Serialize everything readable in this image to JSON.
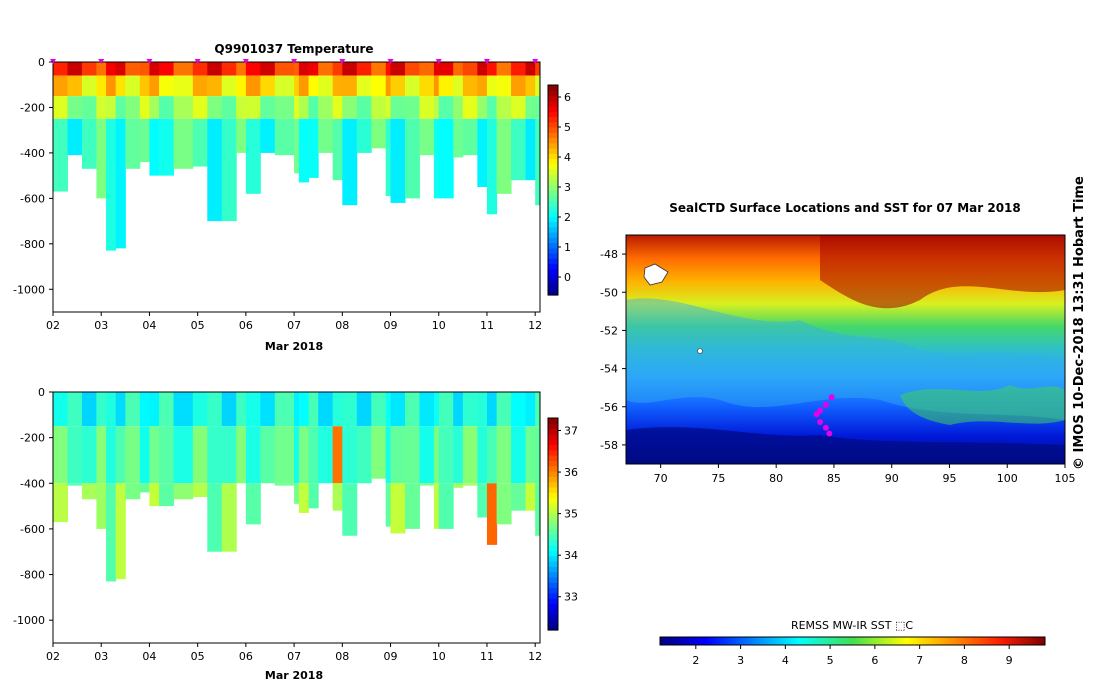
{
  "top_panel": {
    "title": "Q9901037  Temperature",
    "xlabel": "Mar 2018",
    "x_ticks": [
      "02",
      "03",
      "04",
      "05",
      "06",
      "07",
      "08",
      "09",
      "10",
      "11",
      "12"
    ],
    "y_ticks": [
      "0",
      "-200",
      "-400",
      "-600",
      "-800",
      "-1000"
    ],
    "colorbar_ticks": [
      "6",
      "5",
      "4",
      "3",
      "2",
      "1",
      "0"
    ]
  },
  "bottom_panel": {
    "xlabel": "Mar 2018",
    "x_ticks": [
      "02",
      "03",
      "04",
      "05",
      "06",
      "07",
      "08",
      "09",
      "10",
      "11",
      "12"
    ],
    "y_ticks": [
      "0",
      "-200",
      "-400",
      "-600",
      "-800",
      "-1000"
    ],
    "colorbar_ticks": [
      "37",
      "36",
      "35",
      "34",
      "33"
    ]
  },
  "map_panel": {
    "title": "SealCTD Surface Locations and SST for 07 Mar 2018",
    "lat_ticks": [
      "-48",
      "-50",
      "-52",
      "-54",
      "-56",
      "-58"
    ],
    "lon_ticks": [
      "70",
      "75",
      "80",
      "85",
      "90",
      "95",
      "100",
      "105"
    ],
    "colorbar_label": "REMSS MW-IR SST ⬚C",
    "colorbar_ticks": [
      "2",
      "3",
      "4",
      "5",
      "6",
      "7",
      "8",
      "9"
    ],
    "side_text": "© IMOS 10-Dec-2018 13:31 Hobart Time"
  },
  "colors": {
    "jet": [
      "#00007f",
      "#0000ff",
      "#007fff",
      "#00ffff",
      "#7fff7f",
      "#ffff00",
      "#ff7f00",
      "#ff0000",
      "#7f0000"
    ],
    "marker": "#e600e6"
  },
  "chart_data": [
    {
      "type": "heatmap",
      "title": "Q9901037  Temperature",
      "xlabel": "Mar 2018",
      "ylabel": "",
      "xlim": [
        "2018-03-02",
        "2018-03-12"
      ],
      "ylim": [
        -1100,
        0
      ],
      "colorbar_range": [
        -0.6,
        6.4
      ],
      "profile_times_day": [
        2.0,
        2.3,
        2.6,
        2.9,
        3.1,
        3.3,
        3.5,
        3.8,
        4.0,
        4.2,
        4.5,
        4.9,
        5.2,
        5.5,
        5.8,
        6.0,
        6.3,
        6.6,
        7.0,
        7.1,
        7.3,
        7.5,
        7.8,
        8.0,
        8.3,
        8.6,
        8.9,
        9.0,
        9.3,
        9.6,
        9.9,
        10.0,
        10.3,
        10.5,
        10.8,
        11.0,
        11.2,
        11.5,
        11.8,
        12.0
      ],
      "profile_max_depth_m": [
        -570,
        -410,
        -470,
        -600,
        -830,
        -820,
        -470,
        -440,
        -500,
        -500,
        -470,
        -460,
        -700,
        -700,
        -400,
        -580,
        -400,
        -410,
        -490,
        -530,
        -510,
        -400,
        -520,
        -630,
        -400,
        -380,
        -590,
        -620,
        -600,
        -410,
        -600,
        -600,
        -420,
        -410,
        -550,
        -670,
        -580,
        -520,
        -520,
        -630
      ],
      "temperature_layers": [
        {
          "depth_m": [
            0,
            -60
          ],
          "value": 5.3
        },
        {
          "depth_m": [
            -60,
            -150
          ],
          "value": 4.0
        },
        {
          "depth_m": [
            -150,
            -250
          ],
          "value": 3.1
        },
        {
          "depth_m": [
            -250,
            -1100
          ],
          "value": 2.4
        }
      ]
    },
    {
      "type": "heatmap",
      "title": "",
      "xlabel": "Mar 2018",
      "ylabel": "",
      "xlim": [
        "2018-03-02",
        "2018-03-12"
      ],
      "ylim": [
        -1100,
        0
      ],
      "colorbar_range": [
        32.2,
        37.3
      ],
      "profile_times_day": [
        2.0,
        2.3,
        2.6,
        2.9,
        3.1,
        3.3,
        3.5,
        3.8,
        4.0,
        4.2,
        4.5,
        4.9,
        5.2,
        5.5,
        5.8,
        6.0,
        6.3,
        6.6,
        7.0,
        7.1,
        7.3,
        7.5,
        7.8,
        8.0,
        8.3,
        8.6,
        8.9,
        9.0,
        9.3,
        9.6,
        9.9,
        10.0,
        10.3,
        10.5,
        10.8,
        11.0,
        11.2,
        11.5,
        11.8,
        12.0
      ],
      "profile_max_depth_m": [
        -570,
        -410,
        -470,
        -600,
        -830,
        -820,
        -470,
        -440,
        -500,
        -500,
        -470,
        -460,
        -700,
        -700,
        -400,
        -580,
        -400,
        -410,
        -490,
        -530,
        -510,
        -400,
        -520,
        -630,
        -400,
        -380,
        -590,
        -620,
        -600,
        -410,
        -600,
        -600,
        -420,
        -410,
        -550,
        -670,
        -580,
        -520,
        -520,
        -630
      ],
      "salinity_layers": [
        {
          "depth_m": [
            0,
            -150
          ],
          "value": 34.2
        },
        {
          "depth_m": [
            -150,
            -400
          ],
          "value": 34.5
        },
        {
          "depth_m": [
            -400,
            -1100
          ],
          "value": 34.8
        }
      ]
    },
    {
      "type": "heatmap",
      "title": "SealCTD Surface Locations and SST for 07 Mar 2018",
      "xlabel": "",
      "ylabel": "",
      "xlim": [
        67,
        105
      ],
      "ylim": [
        -59,
        -47
      ],
      "colorbar_range": [
        1.2,
        9.8
      ],
      "colorbar_label": "REMSS MW-IR SST ⬚C",
      "sst_by_latitude_band": [
        {
          "lat": [
            -47,
            -49
          ],
          "value": 8.4
        },
        {
          "lat": [
            -49,
            -51
          ],
          "value": 7.2
        },
        {
          "lat": [
            -51,
            -53
          ],
          "value": 5.8
        },
        {
          "lat": [
            -53,
            -55.5
          ],
          "value": 4.6
        },
        {
          "lat": [
            -55.5,
            -57
          ],
          "value": 3.6
        },
        {
          "lat": [
            -57,
            -59
          ],
          "value": 2.2
        }
      ],
      "seal_surface_locations": [
        {
          "lon": 84.8,
          "lat": -55.5
        },
        {
          "lon": 84.3,
          "lat": -55.9
        },
        {
          "lon": 83.8,
          "lat": -56.2
        },
        {
          "lon": 83.5,
          "lat": -56.4
        },
        {
          "lon": 83.8,
          "lat": -56.8
        },
        {
          "lon": 84.3,
          "lat": -57.1
        },
        {
          "lon": 84.6,
          "lat": -57.4
        }
      ]
    }
  ]
}
